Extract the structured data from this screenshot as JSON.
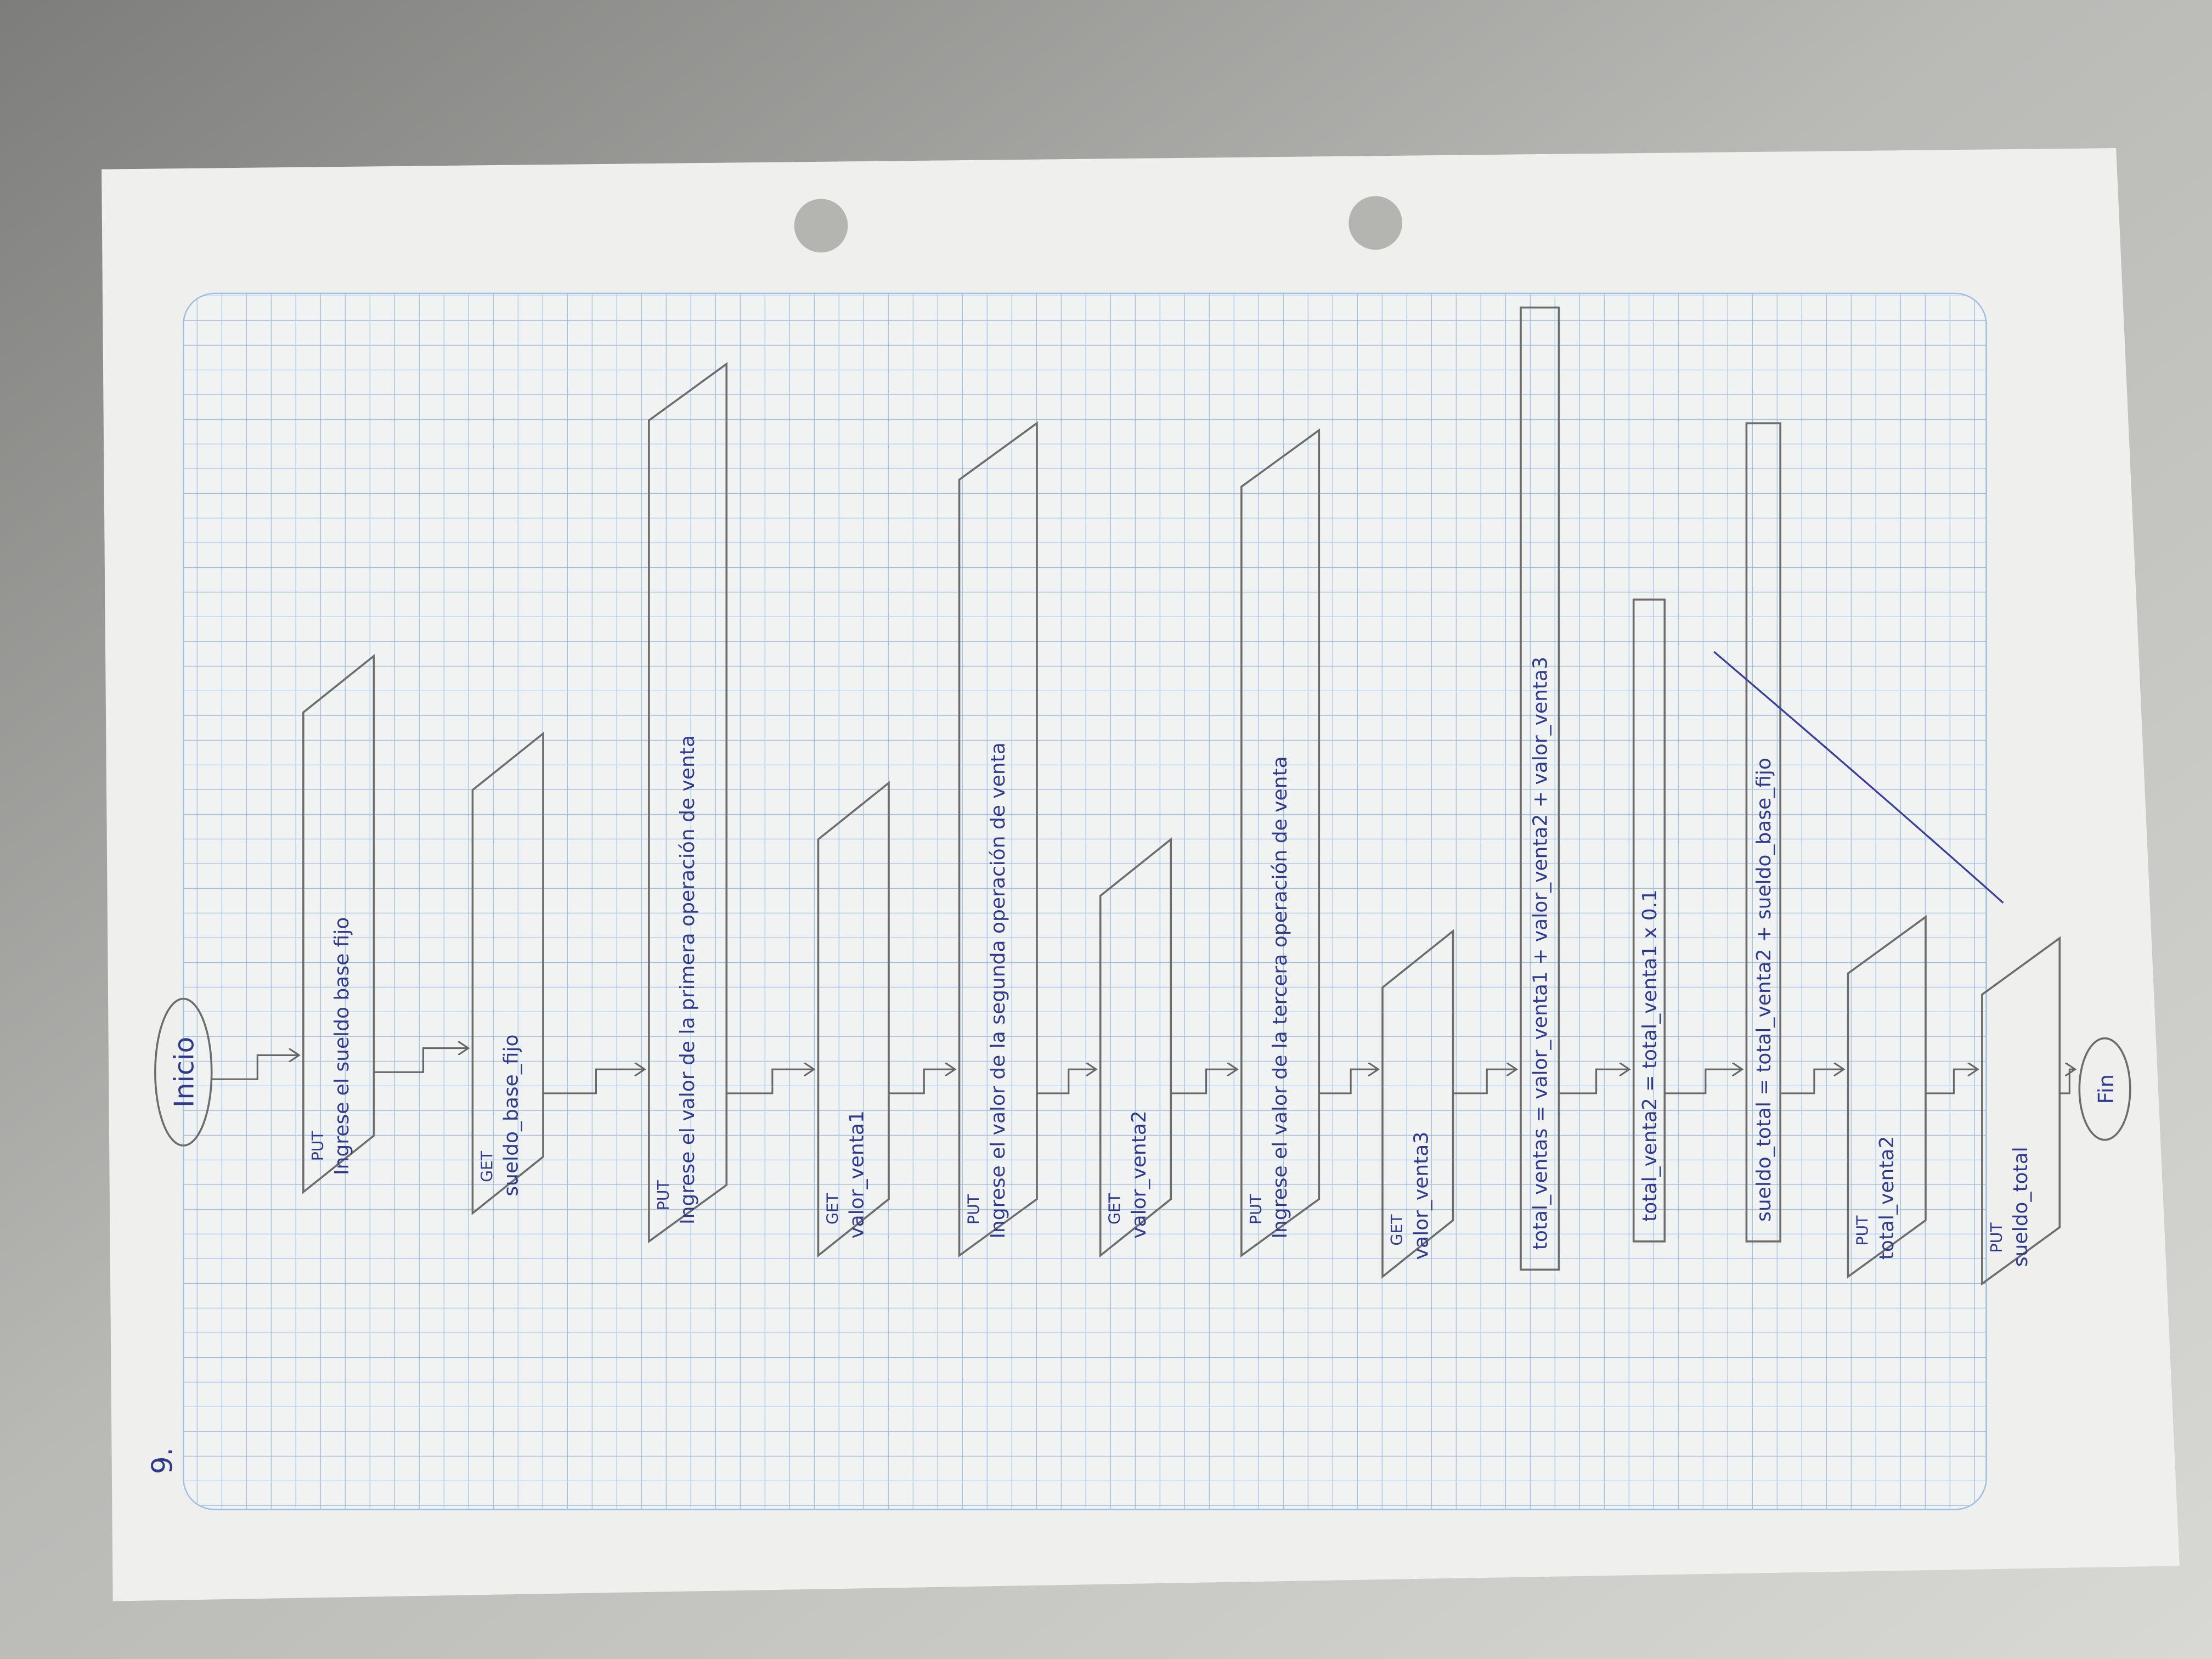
{
  "page_number": "9.",
  "start": "Inicio",
  "end": "Fin",
  "nodes": [
    {
      "kind": "PUT",
      "text": "Ingrese el sueldo base fijo"
    },
    {
      "kind": "GET",
      "text": "sueldo_base_fijo"
    },
    {
      "kind": "PUT",
      "text": "Ingrese el valor de la primera operación de venta"
    },
    {
      "kind": "GET",
      "text": "valor_venta1"
    },
    {
      "kind": "PUT",
      "text": "Ingrese el valor de la segunda operación de venta"
    },
    {
      "kind": "GET",
      "text": "valor_venta2"
    },
    {
      "kind": "PUT",
      "text": "Ingrese el valor de la tercera operación de venta"
    },
    {
      "kind": "GET",
      "text": "valor_venta3"
    },
    {
      "text": "total_ventas = valor_venta1 + valor_venta2 + valor_venta3"
    },
    {
      "text": "total_venta2 = total_venta1 x 0.1"
    },
    {
      "text": "sueldo_total = total_venta2 + sueldo_base_fijo"
    },
    {
      "kind": "PUT",
      "text": "total_venta2"
    },
    {
      "kind": "PUT",
      "text": "sueldo_total"
    }
  ]
}
